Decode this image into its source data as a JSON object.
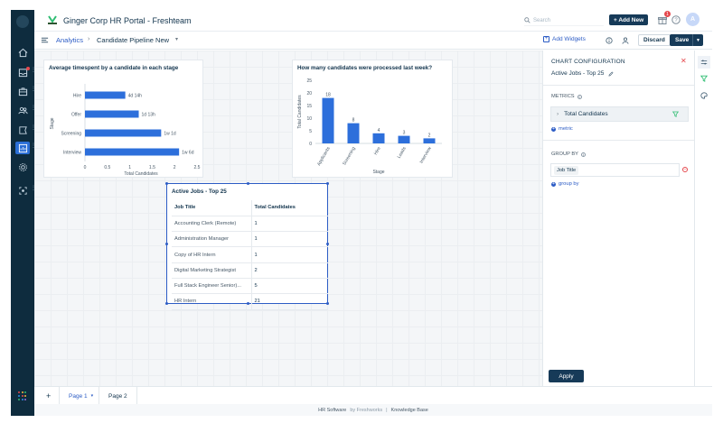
{
  "app": {
    "portal_title": "Ginger Corp HR Portal - Freshteam",
    "search_placeholder": "Search",
    "add_new": "+ Add New",
    "notification_count": "1",
    "avatar_initial": "A"
  },
  "toolbar": {
    "breadcrumb_root": "Analytics",
    "breadcrumb_sep": "›",
    "breadcrumb_current": "Candidate Pipeline New",
    "add_widgets": "Add Widgets",
    "discard": "Discard",
    "save": "Save"
  },
  "colors": {
    "bar": "#2d6fdb",
    "nav_bg": "#0e2c3e",
    "accent": "#2c5cc5",
    "primary_button": "#163a58",
    "remove": "#e5484d"
  },
  "widgets": {
    "timespent": {
      "title": "Average timespent by a candidate in each stage"
    },
    "processed": {
      "title": "How many candidates were processed last week?"
    },
    "table": {
      "title": "Active Jobs - Top 25",
      "columns": [
        "Job Title",
        "Total Candidates"
      ],
      "rows": [
        [
          "Accounting Clerk (Remote)",
          "1"
        ],
        [
          "Administration Manager",
          "1"
        ],
        [
          "Copy of HR Intern",
          "1"
        ],
        [
          "Digital Marketing Strategist",
          "2"
        ],
        [
          "Full Stack Engineer Senior)...",
          "5"
        ],
        [
          "HR Intern",
          "21"
        ]
      ]
    }
  },
  "chart_data": [
    {
      "type": "bar",
      "orientation": "horizontal",
      "title": "Average timespent by a candidate in each stage",
      "xlabel": "Total Candidates",
      "ylabel": "Stage",
      "categories": [
        "Hire",
        "Offer",
        "Screening",
        "Interview"
      ],
      "values": [
        0.9,
        1.2,
        1.7,
        2.1
      ],
      "data_labels": [
        "4d 14h",
        "1d 13h",
        "1w 1d",
        "1w 6d"
      ],
      "xticks": [
        "0",
        "0.5",
        "1",
        "1.5",
        "2",
        "2.5"
      ],
      "xlim": [
        0,
        2.5
      ],
      "grid": false
    },
    {
      "type": "bar",
      "orientation": "vertical",
      "title": "How many candidates were processed last week?",
      "xlabel": "Stage",
      "ylabel": "Total Candidates",
      "categories": [
        "Applicants",
        "Screening",
        "Hire",
        "Leads",
        "Interview"
      ],
      "values": [
        18,
        8,
        4,
        3,
        2
      ],
      "data_labels": [
        "18",
        "8",
        "4",
        "3",
        "2"
      ],
      "yticks": [
        "0",
        "5",
        "10",
        "15",
        "20",
        "25"
      ],
      "ylim": [
        0,
        25
      ],
      "grid": false
    }
  ],
  "config_panel": {
    "title": "CHART CONFIGURATION",
    "chart_name": "Active Jobs - Top 25",
    "metrics_label": "METRICS",
    "metric_value": "Total Candidates",
    "add_metric": "metric",
    "groupby_label": "GROUP BY",
    "groupby_value": "Job Title",
    "add_groupby": "group by",
    "apply": "Apply"
  },
  "pages": {
    "add": "+",
    "page1": "Page 1",
    "page2": "Page 2"
  },
  "footer": {
    "hr_software": "HR Software",
    "by": "by Freshworks",
    "sep": "|",
    "knowledge_base": "Knowledge Base"
  }
}
